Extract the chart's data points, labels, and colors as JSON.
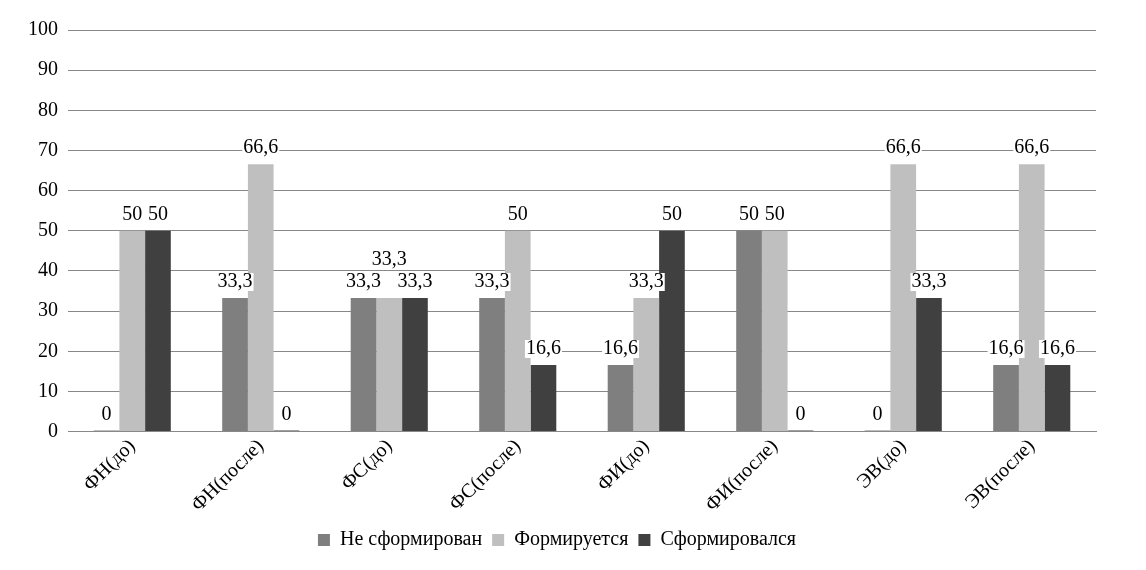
{
  "chart_data": {
    "type": "bar",
    "categories": [
      "ФН(до)",
      "ФН(после)",
      "ФС(до)",
      "ФС(после)",
      "ФИ(до)",
      "ФИ(после)",
      "ЭВ(до)",
      "ЭВ(после)"
    ],
    "series": [
      {
        "name": "Не сформирован",
        "color": "#7f7f7f",
        "values": [
          0,
          33.3,
          33.3,
          33.3,
          16.6,
          50,
          0,
          16.6
        ],
        "value_labels": [
          "0",
          "33,3",
          "33,3",
          "33,3",
          "16,6",
          "50",
          "0",
          "16,6"
        ]
      },
      {
        "name": "Формируется",
        "color": "#bfbfbf",
        "values": [
          50,
          66.6,
          33.3,
          50,
          33.3,
          50,
          66.6,
          66.6
        ],
        "value_labels": [
          "50",
          "66,6",
          "33,3",
          "50",
          "33,3",
          "50",
          "66,6",
          "66,6"
        ]
      },
      {
        "name": "Сформировался",
        "color": "#404040",
        "values": [
          50,
          0,
          33.3,
          16.6,
          50,
          0,
          33.3,
          16.6
        ],
        "value_labels": [
          "50",
          "0",
          "33,3",
          "16,6",
          "50",
          "0",
          "33,3",
          "16,6"
        ]
      }
    ],
    "ylim": [
      0,
      100
    ],
    "yticks": [
      0,
      10,
      20,
      30,
      40,
      50,
      60,
      70,
      80,
      90,
      100
    ],
    "grid": "y",
    "legend": "bottom"
  }
}
